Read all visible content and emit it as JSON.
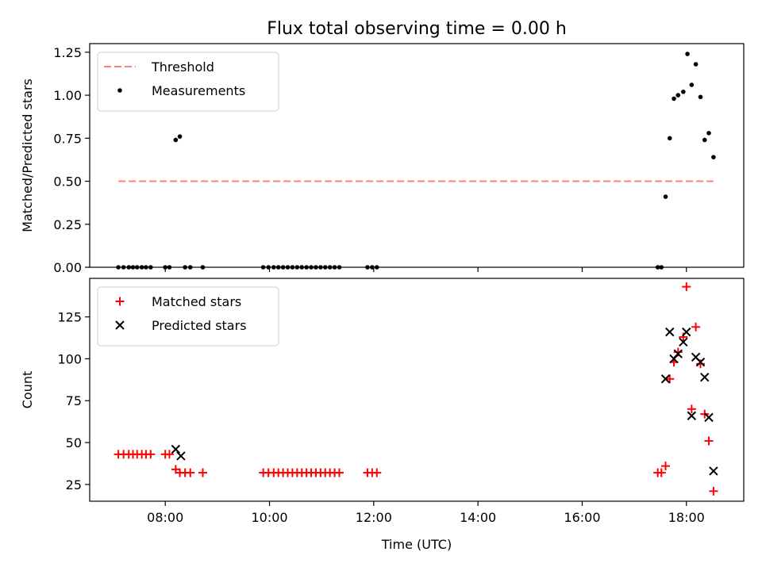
{
  "title": "Flux total observing time = 0.00 h",
  "chart_data": [
    {
      "type": "scatter",
      "ylabel": "Matched/Predicted stars",
      "xlabel": "",
      "xlim": [
        6.55,
        19.1
      ],
      "ylim": [
        0,
        1.3
      ],
      "yticks": [
        0.0,
        0.25,
        0.5,
        0.75,
        1.0,
        1.25
      ],
      "ytick_labels": [
        "0.00",
        "0.25",
        "0.50",
        "0.75",
        "1.00",
        "1.25"
      ],
      "xticks": [
        8,
        10,
        12,
        14,
        16,
        18
      ],
      "legend_position": "top-left",
      "threshold": {
        "name": "Threshold",
        "value": 0.5,
        "x_range": [
          7.1,
          18.52
        ],
        "color": "#ff7f7f"
      },
      "series": [
        {
          "name": "Measurements",
          "color": "#000000",
          "points": [
            [
              7.1,
              0
            ],
            [
              7.2,
              0
            ],
            [
              7.3,
              0
            ],
            [
              7.38,
              0
            ],
            [
              7.46,
              0
            ],
            [
              7.55,
              0
            ],
            [
              7.63,
              0
            ],
            [
              7.72,
              0
            ],
            [
              8.0,
              0
            ],
            [
              8.08,
              0
            ],
            [
              8.2,
              0.74
            ],
            [
              8.28,
              0.76
            ],
            [
              8.38,
              0
            ],
            [
              8.48,
              0
            ],
            [
              8.72,
              0
            ],
            [
              9.88,
              0
            ],
            [
              9.98,
              0
            ],
            [
              10.08,
              0
            ],
            [
              10.17,
              0
            ],
            [
              10.26,
              0
            ],
            [
              10.35,
              0
            ],
            [
              10.44,
              0
            ],
            [
              10.53,
              0
            ],
            [
              10.62,
              0
            ],
            [
              10.71,
              0
            ],
            [
              10.8,
              0
            ],
            [
              10.89,
              0
            ],
            [
              10.98,
              0
            ],
            [
              11.07,
              0
            ],
            [
              11.16,
              0
            ],
            [
              11.25,
              0
            ],
            [
              11.34,
              0
            ],
            [
              11.88,
              0
            ],
            [
              11.97,
              0
            ],
            [
              12.06,
              0
            ],
            [
              17.45,
              0
            ],
            [
              17.52,
              0
            ],
            [
              17.6,
              0.41
            ],
            [
              17.68,
              0.75
            ],
            [
              17.76,
              0.98
            ],
            [
              17.84,
              1.0
            ],
            [
              17.94,
              1.02
            ],
            [
              18.02,
              1.24
            ],
            [
              18.1,
              1.06
            ],
            [
              18.18,
              1.18
            ],
            [
              18.27,
              0.99
            ],
            [
              18.35,
              0.74
            ],
            [
              18.43,
              0.78
            ],
            [
              18.52,
              0.64
            ]
          ]
        }
      ]
    },
    {
      "type": "scatter",
      "ylabel": "Count",
      "xlabel": "Time (UTC)",
      "xlim": [
        6.55,
        19.1
      ],
      "ylim": [
        15,
        148
      ],
      "yticks": [
        25,
        50,
        75,
        100,
        125
      ],
      "ytick_labels": [
        "25",
        "50",
        "75",
        "100",
        "125"
      ],
      "xticks": [
        8,
        10,
        12,
        14,
        16,
        18
      ],
      "xtick_labels": [
        "08:00",
        "10:00",
        "12:00",
        "14:00",
        "16:00",
        "18:00"
      ],
      "legend_position": "top-left",
      "series": [
        {
          "name": "Matched stars",
          "color": "#ff0000",
          "marker": "plus",
          "points": [
            [
              7.1,
              43
            ],
            [
              7.2,
              43
            ],
            [
              7.3,
              43
            ],
            [
              7.38,
              43
            ],
            [
              7.46,
              43
            ],
            [
              7.55,
              43
            ],
            [
              7.63,
              43
            ],
            [
              7.72,
              43
            ],
            [
              8.0,
              43
            ],
            [
              8.08,
              43
            ],
            [
              8.2,
              34
            ],
            [
              8.28,
              32
            ],
            [
              8.38,
              32
            ],
            [
              8.48,
              32
            ],
            [
              8.72,
              32
            ],
            [
              9.88,
              32
            ],
            [
              9.98,
              32
            ],
            [
              10.08,
              32
            ],
            [
              10.17,
              32
            ],
            [
              10.26,
              32
            ],
            [
              10.35,
              32
            ],
            [
              10.44,
              32
            ],
            [
              10.53,
              32
            ],
            [
              10.62,
              32
            ],
            [
              10.71,
              32
            ],
            [
              10.8,
              32
            ],
            [
              10.89,
              32
            ],
            [
              10.98,
              32
            ],
            [
              11.07,
              32
            ],
            [
              11.16,
              32
            ],
            [
              11.25,
              32
            ],
            [
              11.34,
              32
            ],
            [
              11.88,
              32
            ],
            [
              11.97,
              32
            ],
            [
              12.06,
              32
            ],
            [
              17.45,
              32
            ],
            [
              17.52,
              32
            ],
            [
              17.6,
              36
            ],
            [
              17.68,
              88
            ],
            [
              17.76,
              98
            ],
            [
              17.84,
              104
            ],
            [
              17.94,
              113
            ],
            [
              18.0,
              143
            ],
            [
              18.1,
              70
            ],
            [
              18.18,
              119
            ],
            [
              18.27,
              97
            ],
            [
              18.35,
              67
            ],
            [
              18.43,
              51
            ],
            [
              18.52,
              21
            ]
          ]
        },
        {
          "name": "Predicted stars",
          "color": "#000000",
          "marker": "x",
          "points": [
            [
              8.2,
              46
            ],
            [
              8.3,
              42
            ],
            [
              17.6,
              88
            ],
            [
              17.68,
              116
            ],
            [
              17.76,
              100
            ],
            [
              17.84,
              103
            ],
            [
              17.94,
              110
            ],
            [
              18.0,
              116
            ],
            [
              18.1,
              66
            ],
            [
              18.18,
              101
            ],
            [
              18.27,
              98
            ],
            [
              18.35,
              89
            ],
            [
              18.43,
              65
            ],
            [
              18.52,
              33
            ]
          ]
        }
      ]
    }
  ]
}
